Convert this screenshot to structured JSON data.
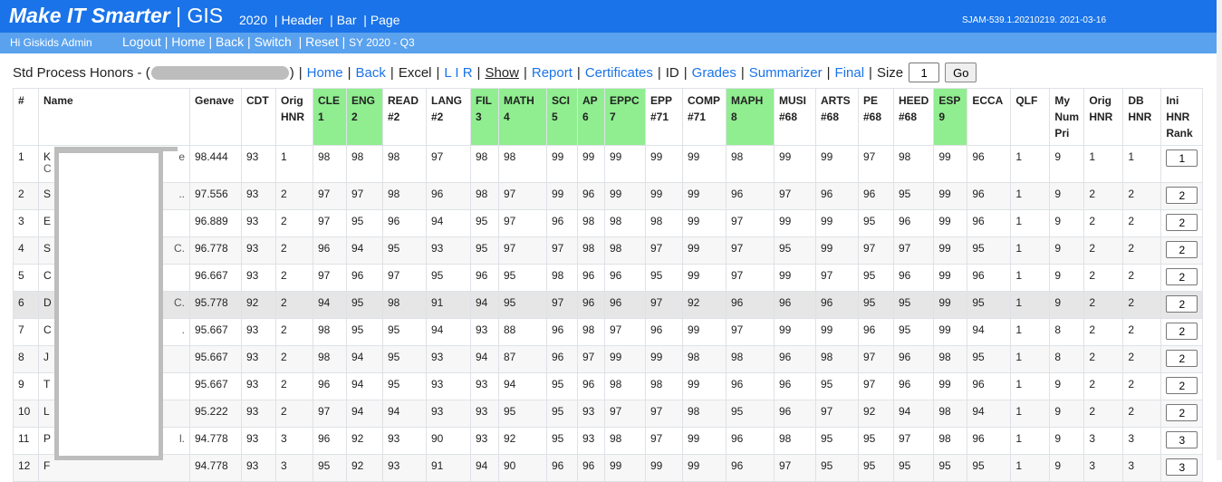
{
  "header": {
    "brand_main": "Make IT Smarter",
    "brand_sep": "|",
    "brand_gis": "GIS",
    "year": "2020",
    "menu": [
      "Header",
      "Bar",
      "Page"
    ],
    "version": "SJAM-539.1.20210219. 2021-03-16"
  },
  "subbar": {
    "greeting": "Hi Giskids Admin",
    "links": [
      "Logout",
      "Home",
      "Back",
      "Switch",
      "Reset"
    ],
    "sy": "SY 2020 - Q3"
  },
  "toolbar": {
    "title": "Std Process Honors - (",
    "title_end": ")",
    "links": [
      {
        "label": "Home",
        "style": "link"
      },
      {
        "label": "Back",
        "style": "link"
      },
      {
        "label": "Excel",
        "style": "plain"
      },
      {
        "label": "L I R",
        "style": "link"
      },
      {
        "label": "Show",
        "style": "show"
      },
      {
        "label": "Report",
        "style": "link"
      },
      {
        "label": "Certificates",
        "style": "link"
      },
      {
        "label": "ID",
        "style": "plain"
      },
      {
        "label": "Grades",
        "style": "link"
      },
      {
        "label": "Summarizer",
        "style": "link"
      },
      {
        "label": "Final",
        "style": "link"
      }
    ],
    "size_label": "Size",
    "size_value": "1",
    "go_label": "Go"
  },
  "table": {
    "columns": [
      {
        "label": "#",
        "sub": ""
      },
      {
        "label": "Name",
        "sub": ""
      },
      {
        "label": "Genave",
        "sub": ""
      },
      {
        "label": "CDT",
        "sub": ""
      },
      {
        "label": "Orig HNR",
        "sub": ""
      },
      {
        "label": "CLE",
        "sub": "1",
        "green": true
      },
      {
        "label": "ENG",
        "sub": "2",
        "green": true
      },
      {
        "label": "READ #2",
        "sub": ""
      },
      {
        "label": "LANG #2",
        "sub": ""
      },
      {
        "label": "FIL",
        "sub": "3",
        "green": true
      },
      {
        "label": "MATH",
        "sub": "4",
        "green": true
      },
      {
        "label": "SCI",
        "sub": "5",
        "green": true
      },
      {
        "label": "AP",
        "sub": "6",
        "green": true
      },
      {
        "label": "EPPC",
        "sub": "7",
        "green": true
      },
      {
        "label": "EPP #71",
        "sub": ""
      },
      {
        "label": "COMP #71",
        "sub": ""
      },
      {
        "label": "MAPH",
        "sub": "8",
        "green": true
      },
      {
        "label": "MUSI #68",
        "sub": ""
      },
      {
        "label": "ARTS #68",
        "sub": ""
      },
      {
        "label": "PE #68",
        "sub": ""
      },
      {
        "label": "HEED #68",
        "sub": ""
      },
      {
        "label": "ESP",
        "sub": "9",
        "green": true
      },
      {
        "label": "ECCA",
        "sub": ""
      },
      {
        "label": "QLF",
        "sub": ""
      },
      {
        "label": "My Num Pri",
        "sub": ""
      },
      {
        "label": "Orig HNR",
        "sub": ""
      },
      {
        "label": "DB HNR",
        "sub": ""
      },
      {
        "label": "Ini HNR Rank",
        "sub": ""
      }
    ],
    "rows": [
      {
        "n": "1",
        "name": "K",
        "name2": "e",
        "name3": "C",
        "v": [
          "98.444",
          "93",
          "1",
          "98",
          "98",
          "98",
          "97",
          "98",
          "98",
          "99",
          "99",
          "99",
          "99",
          "99",
          "98",
          "99",
          "99",
          "97",
          "98",
          "99",
          "96",
          "1",
          "9",
          "1",
          "1"
        ],
        "rank": "1"
      },
      {
        "n": "2",
        "name": "S",
        "name2": "..",
        "v": [
          "97.556",
          "93",
          "2",
          "97",
          "97",
          "98",
          "96",
          "98",
          "97",
          "99",
          "96",
          "99",
          "99",
          "99",
          "96",
          "97",
          "96",
          "96",
          "95",
          "99",
          "96",
          "1",
          "9",
          "2",
          "2"
        ],
        "rank": "2"
      },
      {
        "n": "3",
        "name": "E",
        "name2": "",
        "v": [
          "96.889",
          "93",
          "2",
          "97",
          "95",
          "96",
          "94",
          "95",
          "97",
          "96",
          "98",
          "98",
          "98",
          "99",
          "97",
          "99",
          "99",
          "95",
          "96",
          "99",
          "96",
          "1",
          "9",
          "2",
          "2"
        ],
        "rank": "2"
      },
      {
        "n": "4",
        "name": "S",
        "name2": "C.",
        "v": [
          "96.778",
          "93",
          "2",
          "96",
          "94",
          "95",
          "93",
          "95",
          "97",
          "97",
          "98",
          "98",
          "97",
          "99",
          "97",
          "95",
          "99",
          "97",
          "97",
          "99",
          "95",
          "1",
          "9",
          "2",
          "2"
        ],
        "rank": "2"
      },
      {
        "n": "5",
        "name": "C",
        "name2": "",
        "v": [
          "96.667",
          "93",
          "2",
          "97",
          "96",
          "97",
          "95",
          "96",
          "95",
          "98",
          "96",
          "96",
          "95",
          "99",
          "97",
          "99",
          "97",
          "95",
          "96",
          "99",
          "96",
          "1",
          "9",
          "2",
          "2"
        ],
        "rank": "2"
      },
      {
        "n": "6",
        "name": "D",
        "name2": "C.",
        "v": [
          "95.778",
          "92",
          "2",
          "94",
          "95",
          "98",
          "91",
          "94",
          "95",
          "97",
          "96",
          "96",
          "97",
          "92",
          "96",
          "96",
          "96",
          "95",
          "95",
          "99",
          "95",
          "1",
          "9",
          "2",
          "2"
        ],
        "rank": "2"
      },
      {
        "n": "7",
        "name": "C",
        "name2": ".",
        "v": [
          "95.667",
          "93",
          "2",
          "98",
          "95",
          "95",
          "94",
          "93",
          "88",
          "96",
          "98",
          "97",
          "96",
          "99",
          "97",
          "99",
          "99",
          "96",
          "95",
          "99",
          "94",
          "1",
          "8",
          "2",
          "2"
        ],
        "rank": "2"
      },
      {
        "n": "8",
        "name": "J",
        "name2": "",
        "v": [
          "95.667",
          "93",
          "2",
          "98",
          "94",
          "95",
          "93",
          "94",
          "87",
          "96",
          "97",
          "99",
          "99",
          "98",
          "98",
          "96",
          "98",
          "97",
          "96",
          "98",
          "95",
          "1",
          "8",
          "2",
          "2"
        ],
        "rank": "2"
      },
      {
        "n": "9",
        "name": "T",
        "name2": "",
        "v": [
          "95.667",
          "93",
          "2",
          "96",
          "94",
          "95",
          "93",
          "93",
          "94",
          "95",
          "96",
          "98",
          "98",
          "99",
          "96",
          "96",
          "95",
          "97",
          "96",
          "99",
          "96",
          "1",
          "9",
          "2",
          "2"
        ],
        "rank": "2"
      },
      {
        "n": "10",
        "name": "L",
        "name2": "",
        "v": [
          "95.222",
          "93",
          "2",
          "97",
          "94",
          "94",
          "93",
          "93",
          "95",
          "95",
          "93",
          "97",
          "97",
          "98",
          "95",
          "96",
          "97",
          "92",
          "94",
          "98",
          "94",
          "1",
          "9",
          "2",
          "2"
        ],
        "rank": "2"
      },
      {
        "n": "11",
        "name": "P",
        "name2": "l.",
        "v": [
          "94.778",
          "93",
          "3",
          "96",
          "92",
          "93",
          "90",
          "93",
          "92",
          "95",
          "93",
          "98",
          "97",
          "99",
          "96",
          "98",
          "95",
          "95",
          "97",
          "98",
          "96",
          "1",
          "9",
          "3",
          "3"
        ],
        "rank": "3"
      },
      {
        "n": "12",
        "name": "F",
        "name2": "",
        "v": [
          "94.778",
          "93",
          "3",
          "95",
          "92",
          "93",
          "91",
          "94",
          "90",
          "96",
          "96",
          "99",
          "99",
          "99",
          "96",
          "97",
          "95",
          "95",
          "95",
          "95",
          "95",
          "1",
          "9",
          "3",
          "3"
        ],
        "rank": "3"
      }
    ]
  }
}
